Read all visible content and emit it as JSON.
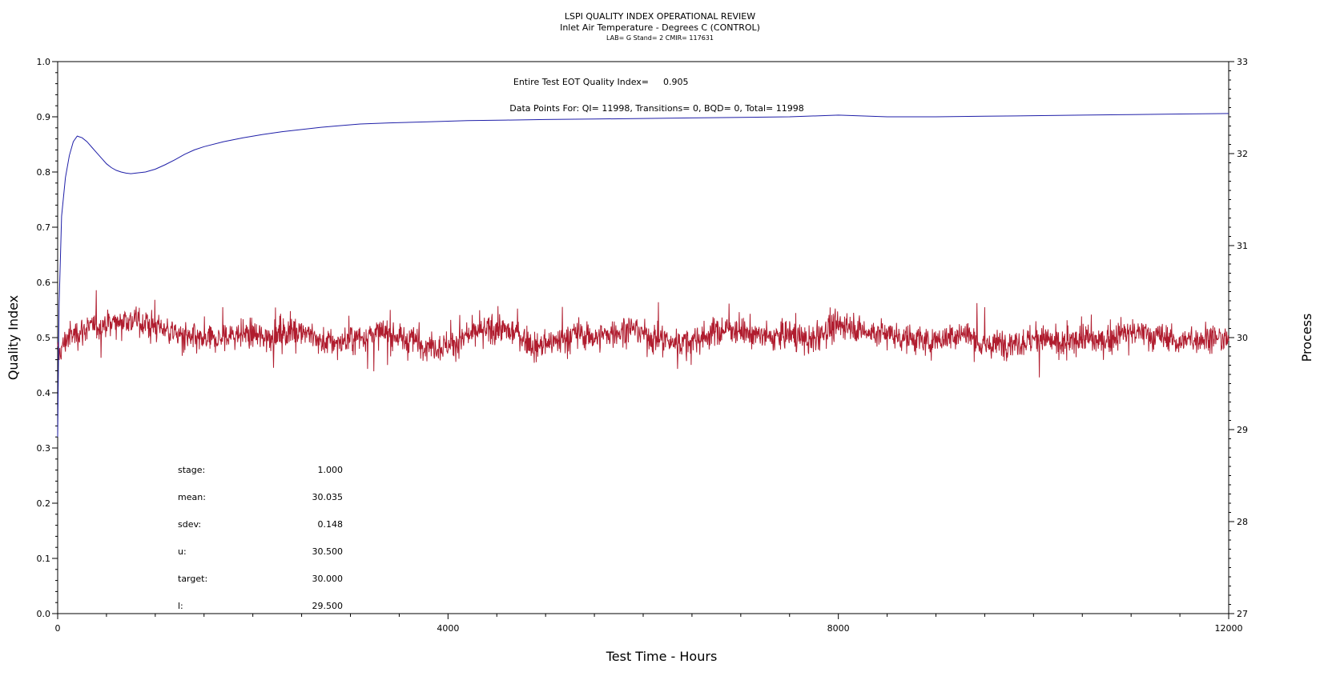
{
  "header": {
    "title": "LSPI QUALITY INDEX OPERATIONAL REVIEW",
    "subtitle": "Inlet Air Temperature - Degrees C (CONTROL)",
    "subtitle2": "LAB= G Stand= 2 CMIR= 117631"
  },
  "chart_data": {
    "type": "line",
    "xlabel": "Test Time - Hours",
    "ylabel": "Quality Index",
    "y2label": "Process",
    "xlim": [
      0,
      12000
    ],
    "ylim": [
      0.0,
      1.0
    ],
    "y2lim": [
      27,
      33
    ],
    "x_ticks": [
      "0",
      "4000",
      "8000",
      "12000"
    ],
    "y_ticks": [
      "0.0",
      "0.1",
      "0.2",
      "0.3",
      "0.4",
      "0.5",
      "0.6",
      "0.7",
      "0.8",
      "0.9",
      "1.0"
    ],
    "y2_ticks": [
      "27",
      "28",
      "29",
      "30",
      "31",
      "32",
      "33"
    ],
    "grid": false,
    "annotations": {
      "eot_label": "Entire Test EOT Quality Index=",
      "eot_value": "0.905",
      "points_line": "Data Points For: QI= 11998, Transitions=     0, BQD=     0, Total= 11998"
    },
    "stats": [
      {
        "label": "stage:",
        "value": "1.000"
      },
      {
        "label": "mean:",
        "value": "30.035"
      },
      {
        "label": "sdev:",
        "value": "0.148"
      },
      {
        "label": "u:",
        "value": "30.500"
      },
      {
        "label": "target:",
        "value": "30.000"
      },
      {
        "label": "l:",
        "value": "29.500"
      }
    ],
    "series": [
      {
        "axis": "left",
        "color": "#1f1fa8",
        "x": [
          0,
          15,
          40,
          80,
          120,
          160,
          200,
          250,
          300,
          350,
          400,
          450,
          500,
          550,
          600,
          650,
          700,
          750,
          800,
          900,
          1000,
          1100,
          1200,
          1300,
          1400,
          1500,
          1700,
          1900,
          2100,
          2300,
          2500,
          2700,
          2900,
          3100,
          3400,
          3800,
          4200,
          4600,
          5000,
          5500,
          6000,
          6500,
          7000,
          7500,
          8000,
          8500,
          9000,
          9500,
          10000,
          10500,
          11000,
          11500,
          12000
        ],
        "values": [
          0.32,
          0.56,
          0.72,
          0.79,
          0.83,
          0.855,
          0.865,
          0.862,
          0.855,
          0.845,
          0.835,
          0.825,
          0.815,
          0.808,
          0.803,
          0.8,
          0.798,
          0.797,
          0.798,
          0.8,
          0.805,
          0.813,
          0.822,
          0.832,
          0.84,
          0.846,
          0.855,
          0.862,
          0.868,
          0.873,
          0.877,
          0.881,
          0.884,
          0.887,
          0.889,
          0.891,
          0.893,
          0.894,
          0.895,
          0.896,
          0.897,
          0.898,
          0.899,
          0.9,
          0.903,
          0.9,
          0.9,
          0.901,
          0.902,
          0.903,
          0.904,
          0.905,
          0.906
        ]
      },
      {
        "axis": "right",
        "color": "#b01c2e",
        "x": [
          0,
          100,
          300,
          500,
          700,
          900,
          1100,
          1300,
          1500,
          1700,
          1900,
          2100,
          2300,
          2500,
          2700,
          2900,
          3100,
          3300,
          3500,
          3700,
          3900,
          4100,
          4300,
          4500,
          4700,
          4900,
          5100,
          5300,
          5500,
          5700,
          5900,
          6100,
          6300,
          6500,
          6700,
          6900,
          7100,
          7300,
          7500,
          7700,
          7900,
          8100,
          8300,
          8500,
          8700,
          8900,
          9100,
          9300,
          9500,
          9700,
          9900,
          10100,
          10300,
          10500,
          10700,
          10900,
          11100,
          11300,
          11500,
          11700,
          11900,
          12000
        ],
        "values": [
          29.8,
          30.0,
          30.1,
          30.15,
          30.2,
          30.15,
          30.1,
          30.0,
          29.95,
          30.0,
          30.05,
          30.0,
          30.05,
          30.1,
          29.95,
          29.95,
          30.0,
          30.05,
          30.0,
          29.95,
          29.9,
          29.95,
          30.05,
          30.1,
          30.05,
          29.9,
          29.95,
          30.05,
          30.0,
          30.05,
          30.1,
          30.0,
          29.95,
          29.95,
          30.05,
          30.1,
          30.05,
          30.0,
          30.05,
          29.95,
          30.1,
          30.15,
          30.05,
          30.05,
          30.0,
          29.95,
          30.0,
          30.05,
          29.9,
          29.95,
          29.95,
          30.0,
          29.9,
          30.0,
          29.95,
          30.05,
          30.05,
          30.0,
          29.95,
          30.0,
          30.0,
          29.95
        ]
      }
    ]
  }
}
